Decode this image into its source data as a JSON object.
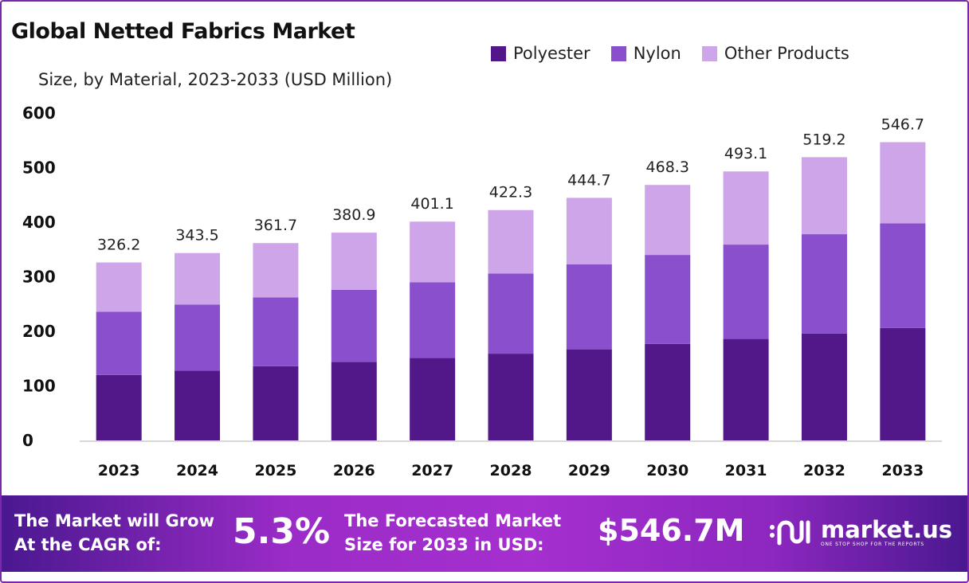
{
  "chart_data": {
    "type": "bar",
    "stacked": true,
    "title": "Global Netted Fabrics Market",
    "subtitle": "Size, by Material, 2023-2033 (USD Million)",
    "categories": [
      "2023",
      "2024",
      "2025",
      "2026",
      "2027",
      "2028",
      "2029",
      "2030",
      "2031",
      "2032",
      "2033"
    ],
    "series": [
      {
        "name": "Polyester",
        "color": "#52188a",
        "values": [
          120,
          128,
          136,
          144,
          151,
          159,
          167,
          177,
          186,
          196,
          206
        ]
      },
      {
        "name": "Nylon",
        "color": "#8a4fcc",
        "values": [
          116,
          121,
          126,
          132,
          139,
          147,
          156,
          163,
          173,
          182,
          192
        ]
      },
      {
        "name": "Other Products",
        "color": "#cfa5ea",
        "values": [
          90.2,
          94.5,
          99.7,
          104.9,
          111.1,
          116.3,
          121.7,
          128.3,
          134.1,
          141.2,
          148.7
        ]
      }
    ],
    "totals": [
      "326.2",
      "343.5",
      "361.7",
      "380.9",
      "401.1",
      "422.3",
      "444.7",
      "468.3",
      "493.1",
      "519.2",
      "546.7"
    ],
    "ylim": [
      0,
      600
    ],
    "yticks": [
      "0",
      "100",
      "200",
      "300",
      "400",
      "500",
      "600"
    ],
    "grid": false,
    "legend": "top-right"
  },
  "banner": {
    "cagr_label_1": "The Market will Grow",
    "cagr_label_2": "At the CAGR of:",
    "cagr_value": "5.3%",
    "forecast_label_1": "The Forecasted Market",
    "forecast_label_2": "Size for 2033 in USD:",
    "forecast_value": "$546.7M",
    "logo_name": "market.us",
    "logo_tagline": "ONE STOP SHOP FOR THE REPORTS"
  }
}
